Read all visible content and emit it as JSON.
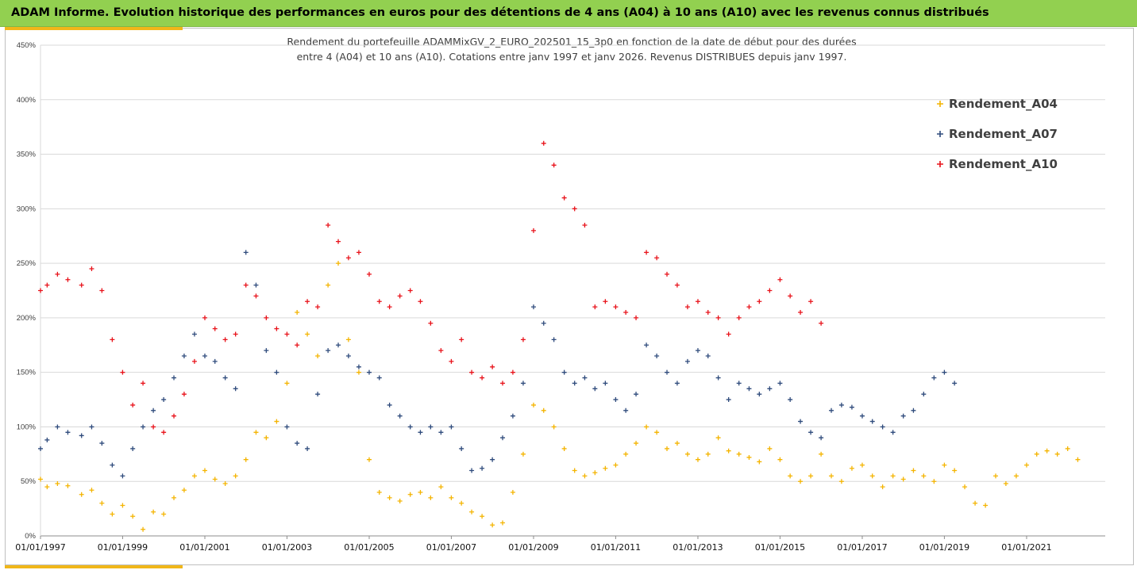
{
  "header": {
    "title": "ADAM Informe. Evolution historique des performances en euros pour des détentions de 4 ans (A04) à 10 ans (A10) avec les revenus connus distribués"
  },
  "colors": {
    "header_bg": "#92d050",
    "accent_gold": "#f0b619",
    "A04": "#f4b400",
    "A07": "#2f4b7c",
    "A10": "#e8121a"
  },
  "chart_data": {
    "type": "scatter",
    "title_lines": [
      "Rendement du portefeuille ADAMMixGV_2_EURO_202501_15_3p0  en fonction de la date de début pour des durées",
      "entre 4 (A04) et 10 ans (A10). Cotations entre janv 1997 et janv 2026. Revenus DISTRIBUES depuis janv 1997."
    ],
    "marker": "+",
    "x_axis": {
      "type": "date",
      "range": [
        "1997-01-01",
        "2022-12-01"
      ],
      "tick_labels": [
        "01/01/1997",
        "01/01/1999",
        "01/01/2001",
        "01/01/2003",
        "01/01/2005",
        "01/01/2007",
        "01/01/2009",
        "01/01/2011",
        "01/01/2013",
        "01/01/2015",
        "01/01/2017",
        "01/01/2019",
        "01/01/2021"
      ],
      "tick_years": [
        1997,
        1999,
        2001,
        2003,
        2005,
        2007,
        2009,
        2011,
        2013,
        2015,
        2017,
        2019,
        2021
      ]
    },
    "y_axis": {
      "format": "percent",
      "range": [
        0,
        450
      ],
      "tick_labels": [
        "0%",
        "50%",
        "100%",
        "150%",
        "200%",
        "250%",
        "300%",
        "350%",
        "400%",
        "450%"
      ],
      "tick_values": [
        0,
        50,
        100,
        150,
        200,
        250,
        300,
        350,
        400,
        450
      ]
    },
    "grid": true,
    "legend_position": "top-right",
    "series": [
      {
        "name": "Rendement_A04",
        "color": "#f4b400",
        "points": [
          [
            "1997-01",
            52
          ],
          [
            "1997-03",
            45
          ],
          [
            "1997-06",
            48
          ],
          [
            "1997-09",
            46
          ],
          [
            "1998-01",
            38
          ],
          [
            "1998-04",
            42
          ],
          [
            "1998-07",
            30
          ],
          [
            "1998-10",
            20
          ],
          [
            "1999-01",
            28
          ],
          [
            "1999-04",
            18
          ],
          [
            "1999-07",
            6
          ],
          [
            "1999-10",
            22
          ],
          [
            "2000-01",
            20
          ],
          [
            "2000-04",
            35
          ],
          [
            "2000-07",
            42
          ],
          [
            "2000-10",
            55
          ],
          [
            "2001-01",
            60
          ],
          [
            "2001-04",
            52
          ],
          [
            "2001-07",
            48
          ],
          [
            "2001-10",
            55
          ],
          [
            "2002-01",
            70
          ],
          [
            "2002-04",
            95
          ],
          [
            "2002-07",
            90
          ],
          [
            "2002-10",
            105
          ],
          [
            "2003-01",
            140
          ],
          [
            "2003-04",
            205
          ],
          [
            "2003-07",
            185
          ],
          [
            "2003-10",
            165
          ],
          [
            "2004-01",
            230
          ],
          [
            "2004-04",
            250
          ],
          [
            "2004-07",
            180
          ],
          [
            "2004-10",
            150
          ],
          [
            "2005-01",
            70
          ],
          [
            "2005-04",
            40
          ],
          [
            "2005-07",
            35
          ],
          [
            "2005-10",
            32
          ],
          [
            "2006-01",
            38
          ],
          [
            "2006-04",
            40
          ],
          [
            "2006-07",
            35
          ],
          [
            "2006-10",
            45
          ],
          [
            "2007-01",
            35
          ],
          [
            "2007-04",
            30
          ],
          [
            "2007-07",
            22
          ],
          [
            "2007-10",
            18
          ],
          [
            "2008-01",
            10
          ],
          [
            "2008-04",
            12
          ],
          [
            "2008-07",
            40
          ],
          [
            "2008-10",
            75
          ],
          [
            "2009-01",
            120
          ],
          [
            "2009-04",
            115
          ],
          [
            "2009-07",
            100
          ],
          [
            "2009-10",
            80
          ],
          [
            "2010-01",
            60
          ],
          [
            "2010-04",
            55
          ],
          [
            "2010-07",
            58
          ],
          [
            "2010-10",
            62
          ],
          [
            "2011-01",
            65
          ],
          [
            "2011-04",
            75
          ],
          [
            "2011-07",
            85
          ],
          [
            "2011-10",
            100
          ],
          [
            "2012-01",
            95
          ],
          [
            "2012-04",
            80
          ],
          [
            "2012-07",
            85
          ],
          [
            "2012-10",
            75
          ],
          [
            "2013-01",
            70
          ],
          [
            "2013-04",
            75
          ],
          [
            "2013-07",
            90
          ],
          [
            "2013-10",
            78
          ],
          [
            "2014-01",
            75
          ],
          [
            "2014-04",
            72
          ],
          [
            "2014-07",
            68
          ],
          [
            "2014-10",
            80
          ],
          [
            "2015-01",
            70
          ],
          [
            "2015-04",
            55
          ],
          [
            "2015-07",
            50
          ],
          [
            "2015-10",
            55
          ],
          [
            "2016-01",
            75
          ],
          [
            "2016-04",
            55
          ],
          [
            "2016-07",
            50
          ],
          [
            "2016-10",
            62
          ],
          [
            "2017-01",
            65
          ],
          [
            "2017-04",
            55
          ],
          [
            "2017-07",
            45
          ],
          [
            "2017-10",
            55
          ],
          [
            "2018-01",
            52
          ],
          [
            "2018-04",
            60
          ],
          [
            "2018-07",
            55
          ],
          [
            "2018-10",
            50
          ],
          [
            "2019-01",
            65
          ],
          [
            "2019-04",
            60
          ],
          [
            "2019-07",
            45
          ],
          [
            "2019-10",
            30
          ],
          [
            "2020-01",
            28
          ],
          [
            "2020-04",
            55
          ],
          [
            "2020-07",
            48
          ],
          [
            "2020-10",
            55
          ],
          [
            "2021-01",
            65
          ],
          [
            "2021-04",
            75
          ],
          [
            "2021-07",
            78
          ],
          [
            "2021-10",
            75
          ],
          [
            "2022-01",
            80
          ],
          [
            "2022-04",
            70
          ]
        ]
      },
      {
        "name": "Rendement_A07",
        "color": "#2f4b7c",
        "points": [
          [
            "1997-01",
            80
          ],
          [
            "1997-03",
            88
          ],
          [
            "1997-06",
            100
          ],
          [
            "1997-09",
            95
          ],
          [
            "1998-01",
            92
          ],
          [
            "1998-04",
            100
          ],
          [
            "1998-07",
            85
          ],
          [
            "1998-10",
            65
          ],
          [
            "1999-01",
            55
          ],
          [
            "1999-04",
            80
          ],
          [
            "1999-07",
            100
          ],
          [
            "1999-10",
            115
          ],
          [
            "2000-01",
            125
          ],
          [
            "2000-04",
            145
          ],
          [
            "2000-07",
            165
          ],
          [
            "2000-10",
            185
          ],
          [
            "2001-01",
            165
          ],
          [
            "2001-04",
            160
          ],
          [
            "2001-07",
            145
          ],
          [
            "2001-10",
            135
          ],
          [
            "2002-01",
            260
          ],
          [
            "2002-04",
            230
          ],
          [
            "2002-07",
            170
          ],
          [
            "2002-10",
            150
          ],
          [
            "2003-01",
            100
          ],
          [
            "2003-04",
            85
          ],
          [
            "2003-07",
            80
          ],
          [
            "2003-10",
            130
          ],
          [
            "2004-01",
            170
          ],
          [
            "2004-04",
            175
          ],
          [
            "2004-07",
            165
          ],
          [
            "2004-10",
            155
          ],
          [
            "2005-01",
            150
          ],
          [
            "2005-04",
            145
          ],
          [
            "2005-07",
            120
          ],
          [
            "2005-10",
            110
          ],
          [
            "2006-01",
            100
          ],
          [
            "2006-04",
            95
          ],
          [
            "2006-07",
            100
          ],
          [
            "2006-10",
            95
          ],
          [
            "2007-01",
            100
          ],
          [
            "2007-04",
            80
          ],
          [
            "2007-07",
            60
          ],
          [
            "2007-10",
            62
          ],
          [
            "2008-01",
            70
          ],
          [
            "2008-04",
            90
          ],
          [
            "2008-07",
            110
          ],
          [
            "2008-10",
            140
          ],
          [
            "2009-01",
            210
          ],
          [
            "2009-04",
            195
          ],
          [
            "2009-07",
            180
          ],
          [
            "2009-10",
            150
          ],
          [
            "2010-01",
            140
          ],
          [
            "2010-04",
            145
          ],
          [
            "2010-07",
            135
          ],
          [
            "2010-10",
            140
          ],
          [
            "2011-01",
            125
          ],
          [
            "2011-04",
            115
          ],
          [
            "2011-07",
            130
          ],
          [
            "2011-10",
            175
          ],
          [
            "2012-01",
            165
          ],
          [
            "2012-04",
            150
          ],
          [
            "2012-07",
            140
          ],
          [
            "2012-10",
            160
          ],
          [
            "2013-01",
            170
          ],
          [
            "2013-04",
            165
          ],
          [
            "2013-07",
            145
          ],
          [
            "2013-10",
            125
          ],
          [
            "2014-01",
            140
          ],
          [
            "2014-04",
            135
          ],
          [
            "2014-07",
            130
          ],
          [
            "2014-10",
            135
          ],
          [
            "2015-01",
            140
          ],
          [
            "2015-04",
            125
          ],
          [
            "2015-07",
            105
          ],
          [
            "2015-10",
            95
          ],
          [
            "2016-01",
            90
          ],
          [
            "2016-04",
            115
          ],
          [
            "2016-07",
            120
          ],
          [
            "2016-10",
            118
          ],
          [
            "2017-01",
            110
          ],
          [
            "2017-04",
            105
          ],
          [
            "2017-07",
            100
          ],
          [
            "2017-10",
            95
          ],
          [
            "2018-01",
            110
          ],
          [
            "2018-04",
            115
          ],
          [
            "2018-07",
            130
          ],
          [
            "2018-10",
            145
          ],
          [
            "2019-01",
            150
          ],
          [
            "2019-04",
            140
          ]
        ]
      },
      {
        "name": "Rendement_A10",
        "color": "#e8121a",
        "points": [
          [
            "1997-01",
            225
          ],
          [
            "1997-03",
            230
          ],
          [
            "1997-06",
            240
          ],
          [
            "1997-09",
            235
          ],
          [
            "1998-01",
            230
          ],
          [
            "1998-04",
            245
          ],
          [
            "1998-07",
            225
          ],
          [
            "1998-10",
            180
          ],
          [
            "1999-01",
            150
          ],
          [
            "1999-04",
            120
          ],
          [
            "1999-07",
            140
          ],
          [
            "1999-10",
            100
          ],
          [
            "2000-01",
            95
          ],
          [
            "2000-04",
            110
          ],
          [
            "2000-07",
            130
          ],
          [
            "2000-10",
            160
          ],
          [
            "2001-01",
            200
          ],
          [
            "2001-04",
            190
          ],
          [
            "2001-07",
            180
          ],
          [
            "2001-10",
            185
          ],
          [
            "2002-01",
            230
          ],
          [
            "2002-04",
            220
          ],
          [
            "2002-07",
            200
          ],
          [
            "2002-10",
            190
          ],
          [
            "2003-01",
            185
          ],
          [
            "2003-04",
            175
          ],
          [
            "2003-07",
            215
          ],
          [
            "2003-10",
            210
          ],
          [
            "2004-01",
            285
          ],
          [
            "2004-04",
            270
          ],
          [
            "2004-07",
            255
          ],
          [
            "2004-10",
            260
          ],
          [
            "2005-01",
            240
          ],
          [
            "2005-04",
            215
          ],
          [
            "2005-07",
            210
          ],
          [
            "2005-10",
            220
          ],
          [
            "2006-01",
            225
          ],
          [
            "2006-04",
            215
          ],
          [
            "2006-07",
            195
          ],
          [
            "2006-10",
            170
          ],
          [
            "2007-01",
            160
          ],
          [
            "2007-04",
            180
          ],
          [
            "2007-07",
            150
          ],
          [
            "2007-10",
            145
          ],
          [
            "2008-01",
            155
          ],
          [
            "2008-04",
            140
          ],
          [
            "2008-07",
            150
          ],
          [
            "2008-10",
            180
          ],
          [
            "2009-01",
            280
          ],
          [
            "2009-04",
            360
          ],
          [
            "2009-07",
            340
          ],
          [
            "2009-10",
            310
          ],
          [
            "2010-01",
            300
          ],
          [
            "2010-04",
            285
          ],
          [
            "2010-07",
            210
          ],
          [
            "2010-10",
            215
          ],
          [
            "2011-01",
            210
          ],
          [
            "2011-04",
            205
          ],
          [
            "2011-07",
            200
          ],
          [
            "2011-10",
            260
          ],
          [
            "2012-01",
            255
          ],
          [
            "2012-04",
            240
          ],
          [
            "2012-07",
            230
          ],
          [
            "2012-10",
            210
          ],
          [
            "2013-01",
            215
          ],
          [
            "2013-04",
            205
          ],
          [
            "2013-07",
            200
          ],
          [
            "2013-10",
            185
          ],
          [
            "2014-01",
            200
          ],
          [
            "2014-04",
            210
          ],
          [
            "2014-07",
            215
          ],
          [
            "2014-10",
            225
          ],
          [
            "2015-01",
            235
          ],
          [
            "2015-04",
            220
          ],
          [
            "2015-07",
            205
          ],
          [
            "2015-10",
            215
          ],
          [
            "2016-01",
            195
          ]
        ]
      }
    ]
  }
}
